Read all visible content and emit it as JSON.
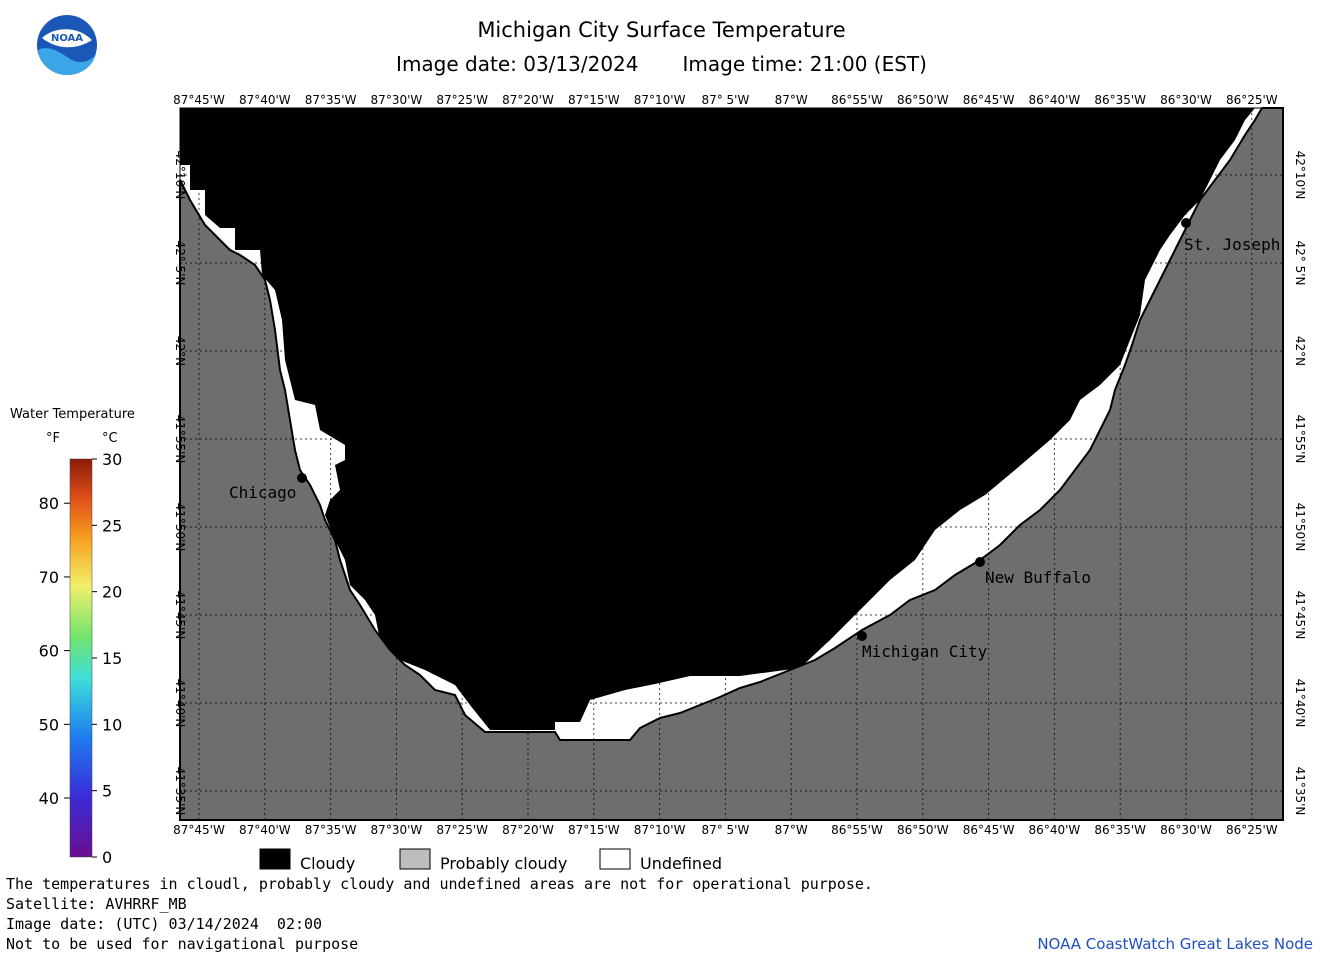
{
  "header": {
    "title": "Michigan City Surface Temperature",
    "image_date_label": "Image date: 03/13/2024",
    "image_time_label": "Image time: 21:00 (EST)"
  },
  "logo": {
    "text": "NOAA",
    "icon": "noaa-logo-icon"
  },
  "map": {
    "lon_ticks": [
      "87°45'W",
      "87°40'W",
      "87°35'W",
      "87°30'W",
      "87°25'W",
      "87°20'W",
      "87°15'W",
      "87°10'W",
      "87° 5'W",
      "87°W",
      "86°55'W",
      "86°50'W",
      "86°45'W",
      "86°40'W",
      "86°35'W",
      "86°30'W",
      "86°25'W"
    ],
    "lat_ticks": [
      "42°10'N",
      "42° 5'N",
      "42°N",
      "41°55'N",
      "41°50'N",
      "41°45'N",
      "41°40'N",
      "41°35'N"
    ],
    "cities": [
      {
        "name": "Chicago"
      },
      {
        "name": "St. Joseph"
      },
      {
        "name": "New Buffalo"
      },
      {
        "name": "Michigan City"
      }
    ],
    "colors": {
      "cloudy": "#000000",
      "land": "#6e6e6e",
      "undefined": "#ffffff",
      "grid": "#000000"
    }
  },
  "temperature_legend": {
    "title": "Water Temperature",
    "unit_f": "°F",
    "unit_c": "°C",
    "f_labels": [
      "80",
      "70",
      "60",
      "50",
      "40"
    ],
    "c_labels": [
      "30",
      "25",
      "20",
      "15",
      "10",
      "5",
      "0"
    ]
  },
  "category_legend": {
    "cloudy": "Cloudy",
    "probably_cloudy": "Probably cloudy",
    "undefined": "Undefined"
  },
  "footer": {
    "line1": "The temperatures in cloudl, probably cloudy and undefined areas are not for operational purpose.",
    "line2": "Satellite: AVHRRF_MB",
    "line3": "Image date: (UTC) 03/14/2024  02:00",
    "line4": "Not to be used for navigational purpose",
    "credit": "NOAA CoastWatch Great Lakes Node"
  }
}
